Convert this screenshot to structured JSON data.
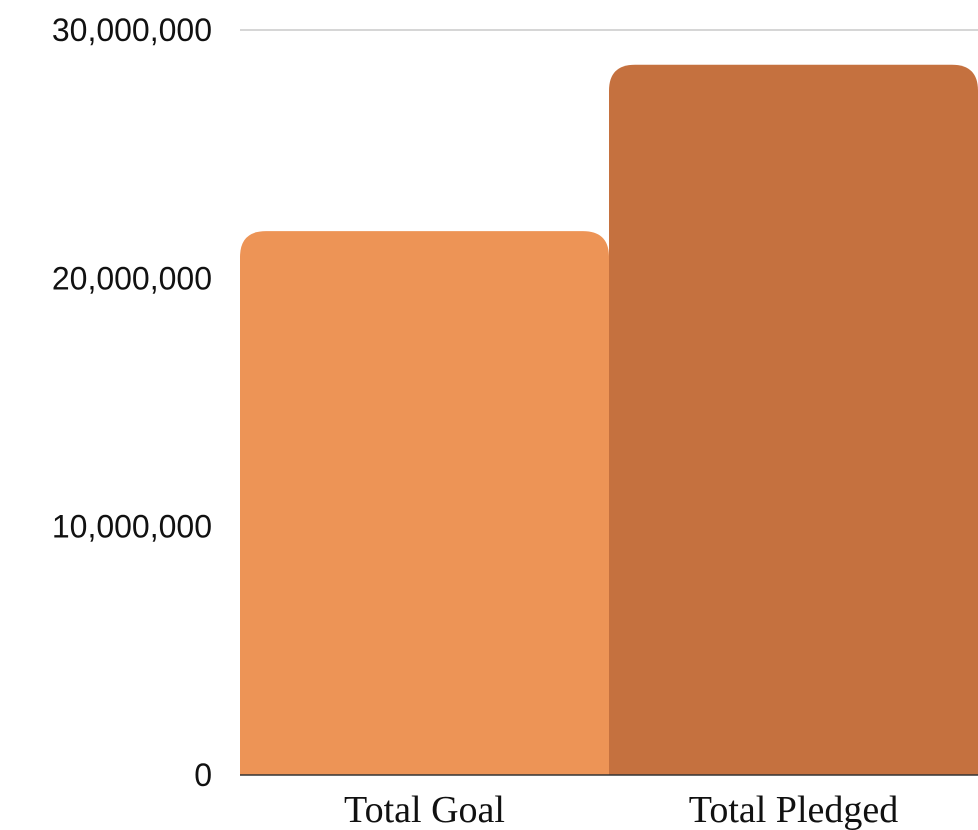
{
  "chart_data": {
    "type": "bar",
    "categories": [
      "Total Goal",
      "Total Pledged"
    ],
    "values": [
      21900000,
      28600000
    ],
    "colors": [
      "#ED9456",
      "#C5713F"
    ],
    "ylim": [
      0,
      30000000
    ],
    "yticks": [
      0,
      10000000,
      20000000,
      30000000
    ],
    "ytick_labels": [
      "0",
      "10,000,000",
      "20,000,000",
      "30,000,000"
    ],
    "grid": "top line only",
    "gridline_color": "#c8c8c8",
    "axis_color": "#333333",
    "legend": "none"
  }
}
